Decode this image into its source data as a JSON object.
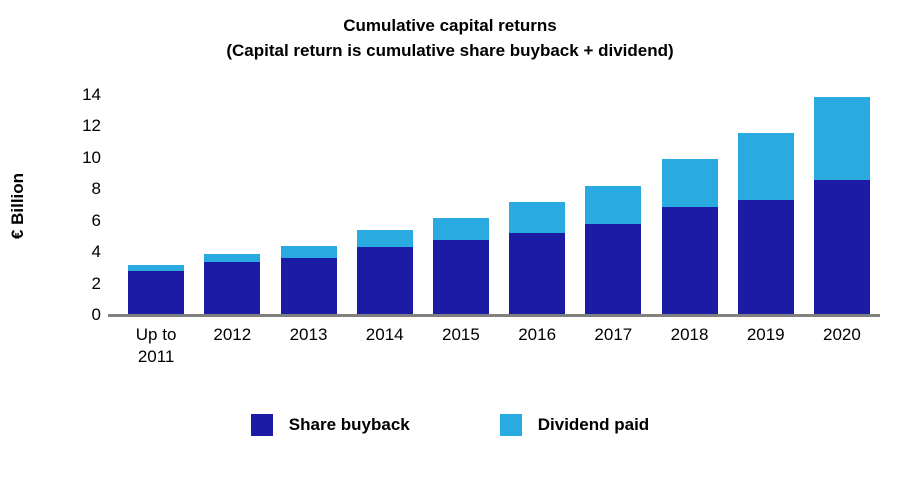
{
  "title": {
    "line1": "Cumulative capital returns",
    "line2": "(Capital return is cumulative share buyback + dividend)"
  },
  "colors": {
    "share_buyback": "#1b1ba6",
    "dividend_paid": "#29abe2",
    "axis_line": "#808080",
    "text": "#000000"
  },
  "chart_data": {
    "type": "bar",
    "stacked": true,
    "title": "Cumulative capital returns (Capital return is cumulative share buyback + dividend)",
    "xlabel": "",
    "ylabel": "€ Billion",
    "ylim": [
      0,
      14
    ],
    "yticks": [
      0,
      2,
      4,
      6,
      8,
      10,
      12,
      14
    ],
    "grid": false,
    "legend_position": "bottom",
    "categories": [
      "Up to 2011",
      "2012",
      "2013",
      "2014",
      "2015",
      "2016",
      "2017",
      "2018",
      "2019",
      "2020"
    ],
    "series": [
      {
        "name": "Share buyback",
        "color": "#1b1ba6",
        "values": [
          2.8,
          3.4,
          3.6,
          4.3,
          4.8,
          5.2,
          5.8,
          6.9,
          7.3,
          8.6
        ]
      },
      {
        "name": "Dividend paid",
        "color": "#29abe2",
        "values": [
          0.4,
          0.5,
          0.8,
          1.1,
          1.4,
          2.0,
          2.4,
          3.0,
          4.3,
          5.3
        ]
      }
    ]
  }
}
